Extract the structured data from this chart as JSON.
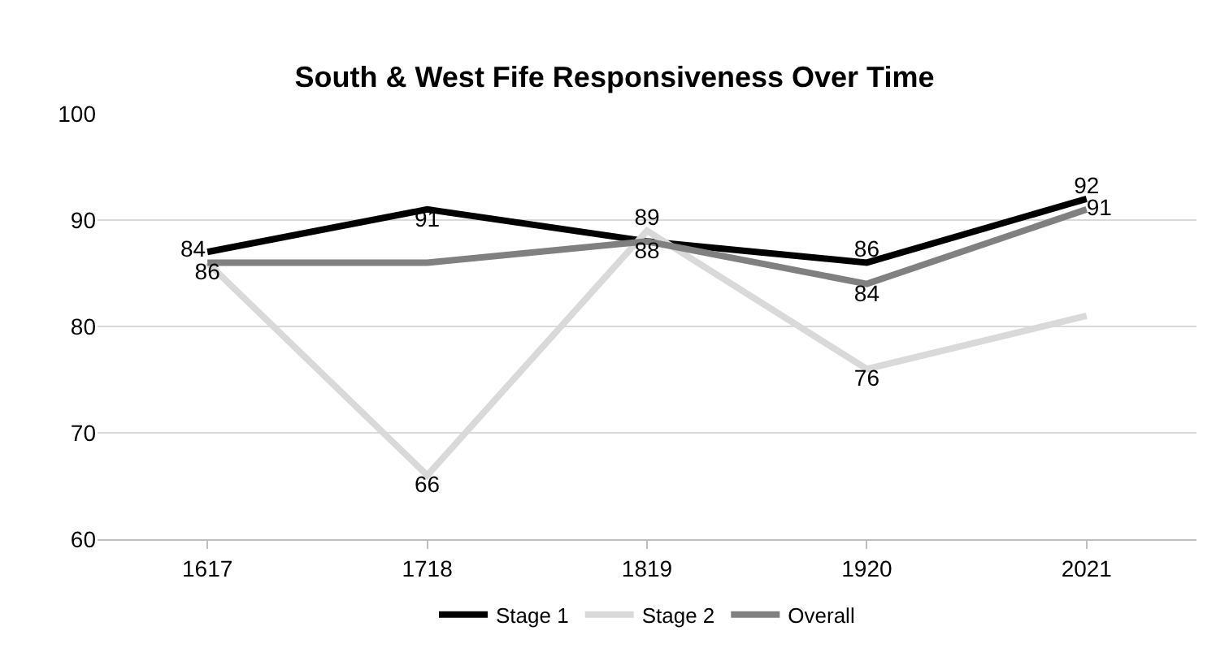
{
  "chart_data": {
    "type": "line",
    "title": "South & West Fife Responsiveness Over Time",
    "categories": [
      "1617",
      "1718",
      "1819",
      "1920",
      "2021"
    ],
    "series": [
      {
        "name": "Stage 1",
        "color": "#000000",
        "values": [
          87,
          91,
          88,
          86,
          92
        ],
        "value_labels": [
          null,
          "91",
          null,
          "86",
          "92"
        ]
      },
      {
        "name": "Stage 2",
        "color": "#d9d9d9",
        "values": [
          86,
          66,
          89,
          76,
          81
        ],
        "value_labels": [
          null,
          "66",
          "89",
          "76",
          null
        ]
      },
      {
        "name": "Overall",
        "color": "#808080",
        "values": [
          86,
          86,
          88,
          84,
          91
        ],
        "value_labels": [
          "86",
          null,
          "88",
          "84",
          "91"
        ]
      }
    ],
    "annotations": [
      "84"
    ],
    "ylim": [
      60,
      100
    ],
    "yticks": [
      60,
      70,
      80,
      90,
      100
    ],
    "grid": "y",
    "legend": "bottom",
    "marker": "none",
    "line_style": "solid"
  }
}
